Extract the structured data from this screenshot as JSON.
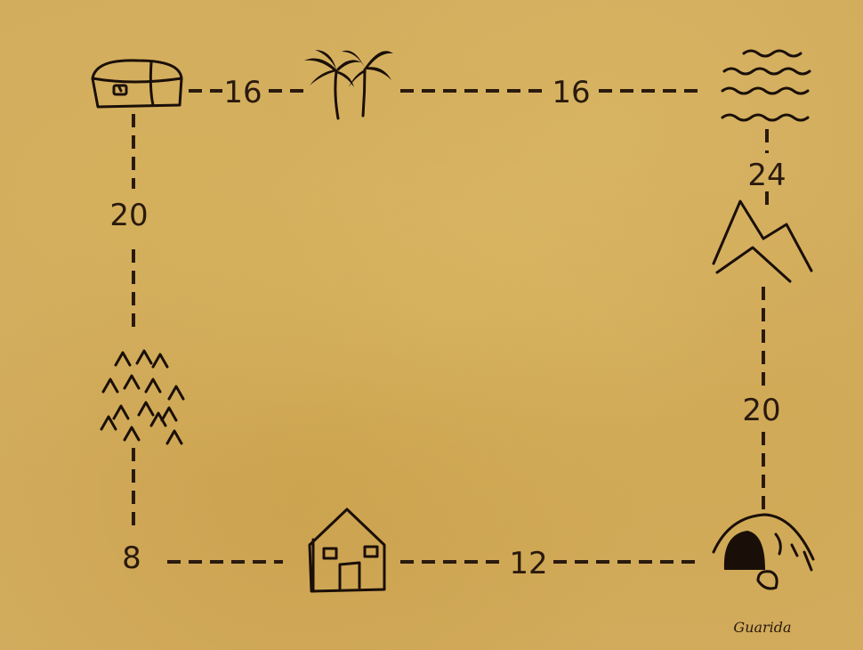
{
  "map": {
    "landmarks": [
      {
        "id": "treasure-chest",
        "icon": "treasure-chest-icon"
      },
      {
        "id": "palm-trees",
        "icon": "palm-trees-icon"
      },
      {
        "id": "sea-waves",
        "icon": "waves-icon"
      },
      {
        "id": "mountains",
        "icon": "mountain-icon"
      },
      {
        "id": "cave",
        "icon": "cave-icon"
      },
      {
        "id": "house",
        "icon": "house-icon"
      },
      {
        "id": "forest",
        "icon": "forest-icon"
      }
    ],
    "distances": {
      "chest_to_palm": "16",
      "palm_to_waves": "16",
      "waves_to_mountain": "24",
      "mountain_to_cave": "20",
      "cave_to_house": "12",
      "house_to_forest": "8",
      "forest_to_chest": "20"
    },
    "signature": "Guarida",
    "colors": {
      "parchment": "#d2ac5e",
      "ink": "#2a1a0e"
    }
  }
}
